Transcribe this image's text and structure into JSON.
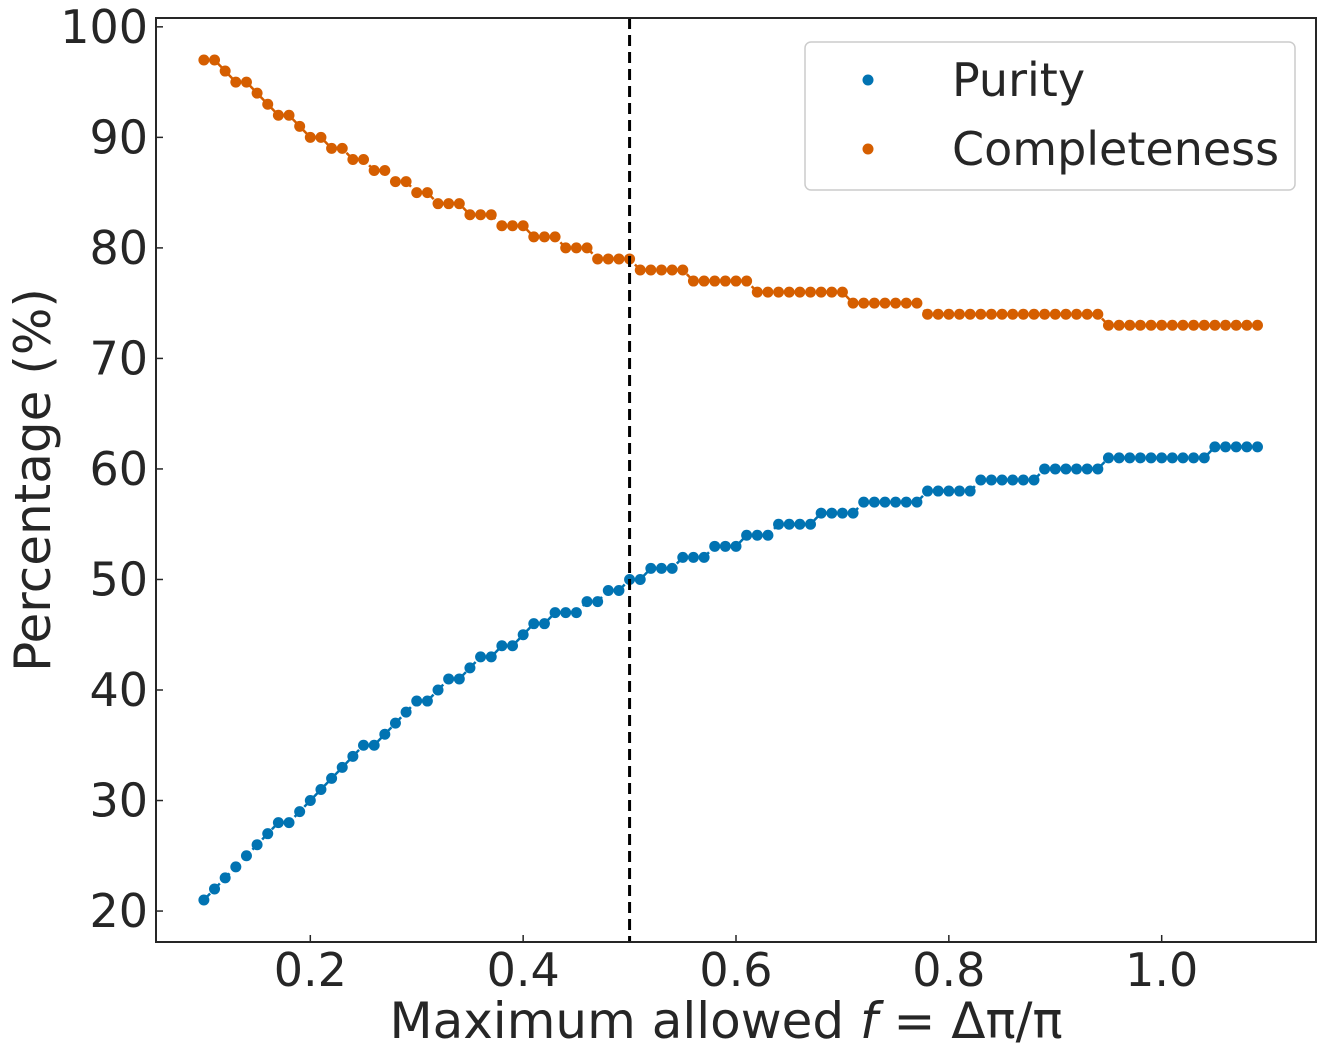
{
  "chart_data": {
    "type": "scatter",
    "title": "",
    "xlabel_prefix": "Maximum allowed ",
    "xlabel_var": "f",
    "xlabel_suffix": " = Δπ/π",
    "ylabel": "Percentage (%)",
    "xlim": [
      0.055,
      1.145
    ],
    "ylim": [
      17.2,
      100.8
    ],
    "xticks": [
      0.2,
      0.4,
      0.6,
      0.8,
      1.0
    ],
    "xtick_labels": [
      "0.2",
      "0.4",
      "0.6",
      "0.8",
      "1.0"
    ],
    "yticks": [
      20,
      30,
      40,
      50,
      60,
      70,
      80,
      90,
      100
    ],
    "ytick_labels": [
      "20",
      "30",
      "40",
      "50",
      "60",
      "70",
      "80",
      "90",
      "100"
    ],
    "vline": {
      "x": 0.5,
      "style": "dashed",
      "color": "#000000"
    },
    "legend": {
      "position": "top-right"
    },
    "x": [
      0.1,
      0.11,
      0.12,
      0.13,
      0.14,
      0.15,
      0.16,
      0.17,
      0.18,
      0.19,
      0.2,
      0.21,
      0.22,
      0.23,
      0.24,
      0.25,
      0.26,
      0.27,
      0.28,
      0.29,
      0.3,
      0.31,
      0.32,
      0.33,
      0.34,
      0.35,
      0.36,
      0.37,
      0.38,
      0.39,
      0.4,
      0.41,
      0.42,
      0.43,
      0.44,
      0.45,
      0.46,
      0.47,
      0.48,
      0.49,
      0.5,
      0.51,
      0.52,
      0.53,
      0.54,
      0.55,
      0.56,
      0.57,
      0.58,
      0.59,
      0.6,
      0.61,
      0.62,
      0.63,
      0.64,
      0.65,
      0.66,
      0.67,
      0.68,
      0.69,
      0.7,
      0.71,
      0.72,
      0.73,
      0.74,
      0.75,
      0.76,
      0.77,
      0.78,
      0.79,
      0.8,
      0.81,
      0.82,
      0.83,
      0.84,
      0.85,
      0.86,
      0.87,
      0.88,
      0.89,
      0.9,
      0.91,
      0.92,
      0.93,
      0.94,
      0.95,
      0.96,
      0.97,
      0.98,
      0.99,
      1.0,
      1.01,
      1.02,
      1.03,
      1.04,
      1.05,
      1.06,
      1.07,
      1.08,
      1.09
    ],
    "series": [
      {
        "name": "Purity",
        "color": "#0173b2",
        "values": [
          21,
          22,
          23,
          24,
          25,
          26,
          27,
          28,
          28,
          29,
          30,
          31,
          32,
          33,
          34,
          35,
          35,
          36,
          37,
          38,
          39,
          39,
          40,
          41,
          41,
          42,
          43,
          43,
          44,
          44,
          45,
          46,
          46,
          47,
          47,
          47,
          48,
          48,
          49,
          49,
          50,
          50,
          51,
          51,
          51,
          52,
          52,
          52,
          53,
          53,
          53,
          54,
          54,
          54,
          55,
          55,
          55,
          55,
          56,
          56,
          56,
          56,
          57,
          57,
          57,
          57,
          57,
          57,
          58,
          58,
          58,
          58,
          58,
          59,
          59,
          59,
          59,
          59,
          59,
          60,
          60,
          60,
          60,
          60,
          60,
          61,
          61,
          61,
          61,
          61,
          61,
          61,
          61,
          61,
          61,
          62,
          62,
          62,
          62,
          62
        ]
      },
      {
        "name": "Completeness",
        "color": "#d55e00",
        "values": [
          97,
          97,
          96,
          95,
          95,
          94,
          93,
          92,
          92,
          91,
          90,
          90,
          89,
          89,
          88,
          88,
          87,
          87,
          86,
          86,
          85,
          85,
          84,
          84,
          84,
          83,
          83,
          83,
          82,
          82,
          82,
          81,
          81,
          81,
          80,
          80,
          80,
          79,
          79,
          79,
          79,
          78,
          78,
          78,
          78,
          78,
          77,
          77,
          77,
          77,
          77,
          77,
          76,
          76,
          76,
          76,
          76,
          76,
          76,
          76,
          76,
          75,
          75,
          75,
          75,
          75,
          75,
          75,
          74,
          74,
          74,
          74,
          74,
          74,
          74,
          74,
          74,
          74,
          74,
          74,
          74,
          74,
          74,
          74,
          74,
          73,
          73,
          73,
          73,
          73,
          73,
          73,
          73,
          73,
          73,
          73,
          73,
          73,
          73,
          73
        ]
      }
    ]
  }
}
